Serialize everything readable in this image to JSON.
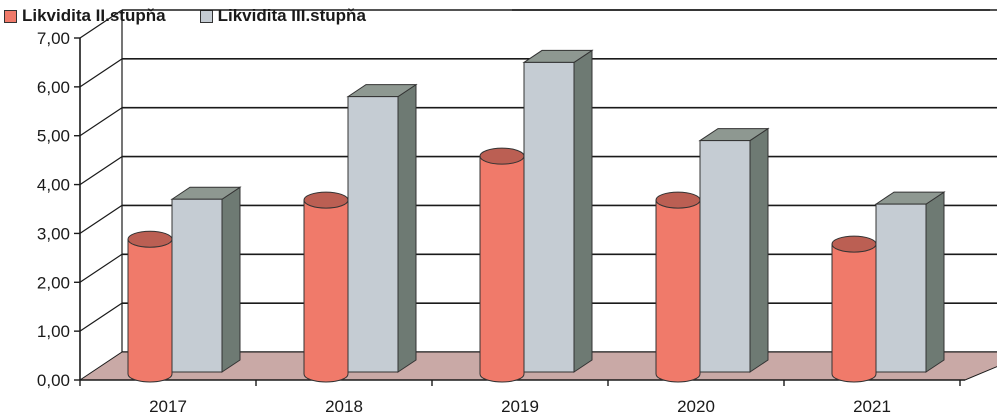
{
  "chart_data": {
    "type": "bar",
    "categories": [
      "2017",
      "2018",
      "2019",
      "2020",
      "2021"
    ],
    "series": [
      {
        "name": "Likvidita II.stupňa",
        "values": [
          2.8,
          3.6,
          4.5,
          3.6,
          2.7
        ],
        "color": "#f07a6a"
      },
      {
        "name": "Likvidita III.stupňa",
        "values": [
          3.7,
          5.8,
          6.5,
          4.9,
          3.6
        ],
        "color": "#c5ccd3"
      }
    ],
    "ylim": [
      0,
      7
    ],
    "y_ticks": [
      "0,00",
      "1,00",
      "2,00",
      "3,00",
      "4,00",
      "5,00",
      "6,00",
      "7,00"
    ],
    "grid": true,
    "legend_position": "top-left",
    "floor_color": "#c9a9a6",
    "grid_color": "#1a1a1a"
  }
}
